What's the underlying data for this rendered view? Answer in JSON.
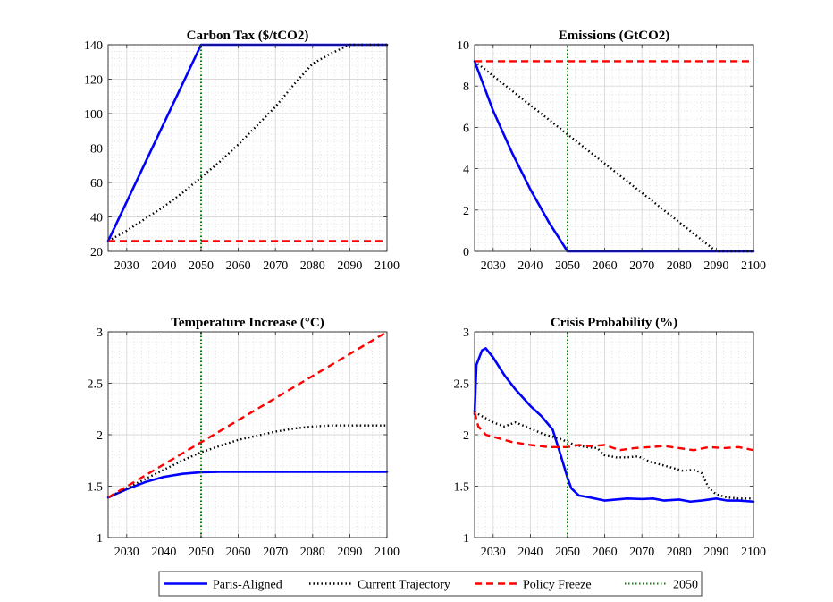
{
  "chart_data": [
    {
      "type": "line",
      "title": "Carbon Tax ($/tCO2)",
      "xlim": [
        2025,
        2100
      ],
      "ylim": [
        20,
        140
      ],
      "xticks": [
        2030,
        2040,
        2050,
        2060,
        2070,
        2080,
        2090,
        2100
      ],
      "yticks": [
        20,
        40,
        60,
        80,
        100,
        120,
        140
      ],
      "grid": true,
      "minor_grid": true,
      "series": [
        {
          "name": "Paris-Aligned",
          "x": [
            2025,
            2050,
            2100
          ],
          "y": [
            26,
            140,
            140
          ]
        },
        {
          "name": "Current Trajectory",
          "x": [
            2025,
            2030,
            2035,
            2040,
            2045,
            2050,
            2055,
            2060,
            2065,
            2070,
            2075,
            2080,
            2085,
            2090,
            2095,
            2100
          ],
          "y": [
            26,
            32,
            39,
            46,
            54,
            63,
            72,
            82,
            93,
            104,
            117,
            129,
            135,
            140,
            140,
            140
          ]
        },
        {
          "name": "Policy Freeze",
          "x": [
            2025,
            2100
          ],
          "y": [
            26,
            26
          ]
        },
        {
          "name": "2050",
          "x": [
            2050,
            2050
          ],
          "y": [
            20,
            140
          ]
        }
      ]
    },
    {
      "type": "line",
      "title": "Emissions (GtCO2)",
      "xlim": [
        2025,
        2100
      ],
      "ylim": [
        0,
        10
      ],
      "xticks": [
        2030,
        2040,
        2050,
        2060,
        2070,
        2080,
        2090,
        2100
      ],
      "yticks": [
        0,
        2,
        4,
        6,
        8,
        10
      ],
      "grid": true,
      "minor_grid": true,
      "series": [
        {
          "name": "Paris-Aligned",
          "x": [
            2025,
            2030,
            2035,
            2040,
            2045,
            2050,
            2100
          ],
          "y": [
            9.2,
            6.8,
            4.8,
            3.0,
            1.4,
            0.0,
            0.0
          ]
        },
        {
          "name": "Current Trajectory",
          "x": [
            2025,
            2090,
            2100
          ],
          "y": [
            9.2,
            0.0,
            0.0
          ]
        },
        {
          "name": "Policy Freeze",
          "x": [
            2025,
            2100
          ],
          "y": [
            9.2,
            9.2
          ]
        },
        {
          "name": "2050",
          "x": [
            2050,
            2050
          ],
          "y": [
            0,
            10
          ]
        }
      ]
    },
    {
      "type": "line",
      "title": "Temperature Increase (°C)",
      "xlim": [
        2025,
        2100
      ],
      "ylim": [
        1,
        3
      ],
      "xticks": [
        2030,
        2040,
        2050,
        2060,
        2070,
        2080,
        2090,
        2100
      ],
      "yticks": [
        1,
        1.5,
        2,
        2.5,
        3
      ],
      "grid": true,
      "minor_grid": true,
      "series": [
        {
          "name": "Paris-Aligned",
          "x": [
            2025,
            2030,
            2035,
            2040,
            2045,
            2050,
            2055,
            2060,
            2100
          ],
          "y": [
            1.39,
            1.47,
            1.54,
            1.59,
            1.62,
            1.635,
            1.64,
            1.64,
            1.64
          ]
        },
        {
          "name": "Current Trajectory",
          "x": [
            2025,
            2030,
            2035,
            2040,
            2045,
            2050,
            2055,
            2060,
            2065,
            2070,
            2075,
            2080,
            2085,
            2090,
            2095,
            2100
          ],
          "y": [
            1.39,
            1.48,
            1.57,
            1.66,
            1.75,
            1.83,
            1.89,
            1.95,
            1.99,
            2.03,
            2.06,
            2.08,
            2.09,
            2.09,
            2.09,
            2.09
          ]
        },
        {
          "name": "Policy Freeze",
          "x": [
            2025,
            2100
          ],
          "y": [
            1.39,
            3.0
          ]
        },
        {
          "name": "2050",
          "x": [
            2050,
            2050
          ],
          "y": [
            1,
            3
          ]
        }
      ]
    },
    {
      "type": "line",
      "title": "Crisis Probability (%)",
      "xlim": [
        2025,
        2100
      ],
      "ylim": [
        1,
        3
      ],
      "xticks": [
        2030,
        2040,
        2050,
        2060,
        2070,
        2080,
        2090,
        2100
      ],
      "yticks": [
        1,
        1.5,
        2,
        2.5,
        3
      ],
      "grid": true,
      "minor_grid": true,
      "series": [
        {
          "name": "Paris-Aligned",
          "x": [
            2025,
            2025.5,
            2027,
            2028,
            2030,
            2033,
            2036,
            2040,
            2043,
            2046,
            2048,
            2050,
            2051,
            2053,
            2056,
            2060,
            2063,
            2066,
            2070,
            2073,
            2076,
            2080,
            2083,
            2086,
            2090,
            2093,
            2096,
            2100
          ],
          "y": [
            2.2,
            2.68,
            2.82,
            2.84,
            2.75,
            2.58,
            2.44,
            2.28,
            2.18,
            2.05,
            1.82,
            1.58,
            1.48,
            1.41,
            1.39,
            1.36,
            1.37,
            1.38,
            1.375,
            1.38,
            1.36,
            1.37,
            1.35,
            1.36,
            1.38,
            1.36,
            1.36,
            1.35
          ]
        },
        {
          "name": "Current Trajectory",
          "x": [
            2025,
            2027,
            2030,
            2033,
            2036,
            2040,
            2044,
            2048,
            2050,
            2052,
            2055,
            2058,
            2060,
            2063,
            2066,
            2069,
            2072,
            2075,
            2078,
            2081,
            2084,
            2086,
            2088,
            2090,
            2093,
            2096,
            2100
          ],
          "y": [
            2.22,
            2.18,
            2.12,
            2.08,
            2.12,
            2.06,
            2.0,
            1.96,
            1.93,
            1.9,
            1.88,
            1.87,
            1.8,
            1.78,
            1.78,
            1.79,
            1.74,
            1.71,
            1.68,
            1.65,
            1.66,
            1.63,
            1.48,
            1.42,
            1.39,
            1.38,
            1.38
          ]
        },
        {
          "name": "Policy Freeze",
          "x": [
            2025,
            2026,
            2028,
            2031,
            2035,
            2040,
            2045,
            2050,
            2053,
            2056,
            2060,
            2064,
            2068,
            2072,
            2076,
            2080,
            2084,
            2088,
            2092,
            2096,
            2100
          ],
          "y": [
            2.22,
            2.08,
            2.0,
            1.97,
            1.93,
            1.9,
            1.88,
            1.88,
            1.9,
            1.89,
            1.9,
            1.85,
            1.87,
            1.88,
            1.89,
            1.87,
            1.85,
            1.88,
            1.87,
            1.88,
            1.85
          ]
        },
        {
          "name": "2050",
          "x": [
            2050,
            2050
          ],
          "y": [
            1,
            3
          ]
        }
      ]
    }
  ],
  "legend": {
    "placement": "bottom-center",
    "entries": [
      {
        "label": "Paris-Aligned",
        "color": "#0000ff",
        "style": "solid"
      },
      {
        "label": "Current Trajectory",
        "color": "#000000",
        "style": "dotted"
      },
      {
        "label": "Policy Freeze",
        "color": "#ff0000",
        "style": "dashed"
      },
      {
        "label": "2050",
        "color": "#008000",
        "style": "dotted"
      }
    ]
  },
  "colors": {
    "paris": "#0000ff",
    "current": "#000000",
    "freeze": "#ff0000",
    "marker_2050": "#008000"
  }
}
